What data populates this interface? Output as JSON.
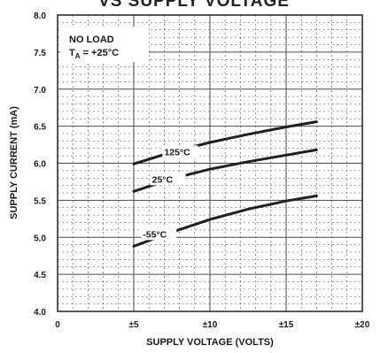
{
  "page_title_partial": "VS SUPPLY VOLTAGE",
  "chart_data": {
    "type": "line",
    "title": "VS SUPPLY VOLTAGE",
    "xlabel": "SUPPLY VOLTAGE (VOLTS)",
    "ylabel": "SUPPLY CURRENT (mA)",
    "xlim": [
      0,
      20
    ],
    "ylim": [
      4.0,
      8.0
    ],
    "x_ticks": [
      {
        "value": 0,
        "label": "0"
      },
      {
        "value": 5,
        "label": "±5"
      },
      {
        "value": 10,
        "label": "±10"
      },
      {
        "value": 15,
        "label": "±15"
      },
      {
        "value": 20,
        "label": "±20"
      }
    ],
    "y_ticks": [
      {
        "value": 4.0,
        "label": "4.0"
      },
      {
        "value": 4.5,
        "label": "4.5"
      },
      {
        "value": 5.0,
        "label": "5.0"
      },
      {
        "value": 5.5,
        "label": "5.5"
      },
      {
        "value": 6.0,
        "label": "6.0"
      },
      {
        "value": 6.5,
        "label": "6.5"
      },
      {
        "value": 7.0,
        "label": "7.0"
      },
      {
        "value": 7.5,
        "label": "7.5"
      },
      {
        "value": 8.0,
        "label": "8.0"
      }
    ],
    "grid": true,
    "annotation": {
      "line1": "NO LOAD",
      "line2_prefix": "T",
      "line2_sub": "A",
      "line2_suffix": " = +25°C"
    },
    "series": [
      {
        "name": "125°C",
        "x": [
          5,
          7.5,
          10,
          12.5,
          15,
          17
        ],
        "y": [
          5.99,
          6.15,
          6.28,
          6.39,
          6.49,
          6.56
        ]
      },
      {
        "name": "25°C",
        "x": [
          5,
          7.5,
          10,
          12.5,
          15,
          17
        ],
        "y": [
          5.62,
          5.79,
          5.92,
          6.02,
          6.11,
          6.18
        ]
      },
      {
        "name": "-55°C",
        "x": [
          5,
          7.5,
          10,
          12.5,
          15,
          17
        ],
        "y": [
          4.88,
          5.07,
          5.24,
          5.38,
          5.49,
          5.56
        ]
      }
    ],
    "colors": {
      "line": "#1f1f1f",
      "grid": "#4a4a4a",
      "background": "#ffffff"
    }
  }
}
